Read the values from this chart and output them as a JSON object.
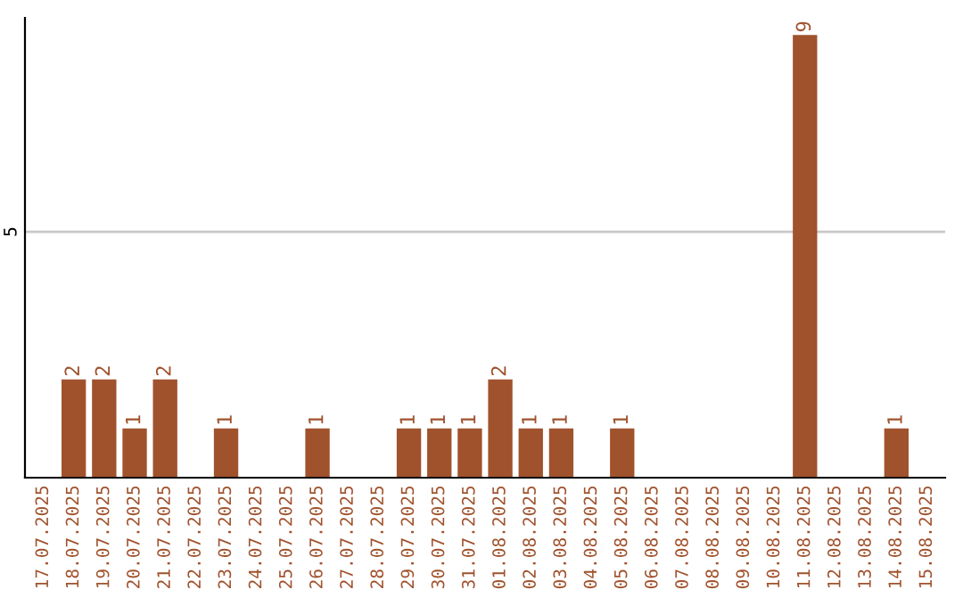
{
  "chart_data": {
    "type": "bar",
    "categories": [
      "17.07.2025",
      "18.07.2025",
      "19.07.2025",
      "20.07.2025",
      "21.07.2025",
      "22.07.2025",
      "23.07.2025",
      "24.07.2025",
      "25.07.2025",
      "26.07.2025",
      "27.07.2025",
      "28.07.2025",
      "29.07.2025",
      "30.07.2025",
      "31.07.2025",
      "01.08.2025",
      "02.08.2025",
      "03.08.2025",
      "04.08.2025",
      "05.08.2025",
      "06.08.2025",
      "07.08.2025",
      "08.08.2025",
      "09.08.2025",
      "10.08.2025",
      "11.08.2025",
      "12.08.2025",
      "13.08.2025",
      "14.08.2025",
      "15.08.2025"
    ],
    "values": [
      0,
      2,
      2,
      1,
      2,
      0,
      1,
      0,
      0,
      1,
      0,
      0,
      1,
      1,
      1,
      2,
      1,
      1,
      0,
      1,
      0,
      0,
      0,
      0,
      0,
      9,
      0,
      0,
      1,
      0
    ],
    "value_labels": [
      null,
      "2",
      "2",
      "1",
      "2",
      null,
      "1",
      null,
      null,
      "1",
      null,
      null,
      "1",
      "1",
      "1",
      "2",
      "1",
      "1",
      null,
      "1",
      null,
      null,
      null,
      null,
      null,
      "9",
      null,
      null,
      "1",
      null
    ],
    "color": "#a0522d",
    "ylim": [
      0,
      9.35
    ],
    "yticks": [
      5
    ],
    "grid": "y",
    "legend": false
  }
}
